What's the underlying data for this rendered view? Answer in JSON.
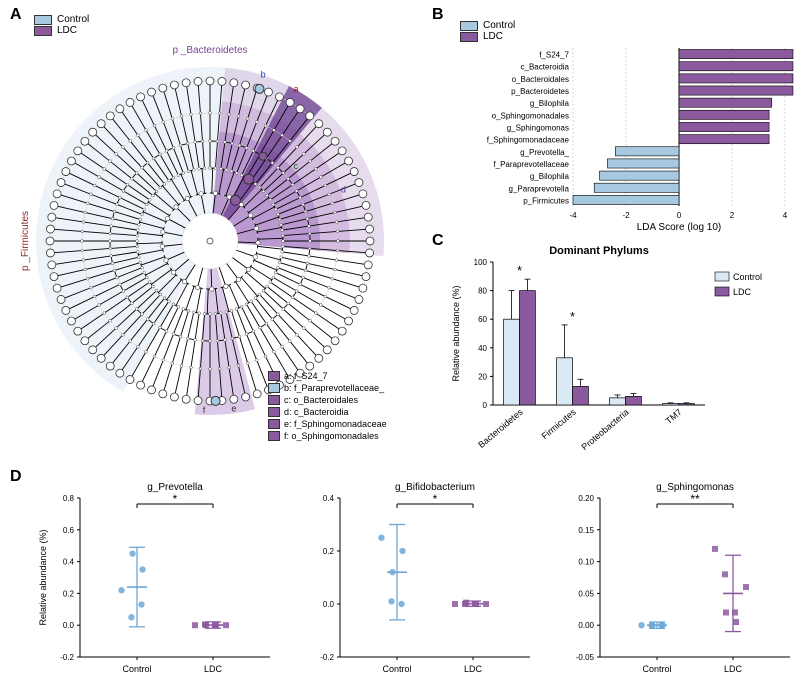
{
  "global": {
    "control_color": "#a6c8e0",
    "ldc_color": "#8b5a9e",
    "control_label": "Control",
    "ldc_label": "LDC",
    "bg": "#ffffff"
  },
  "panelA": {
    "label": "A",
    "title_top": "p _Bacteroidetes",
    "title_left": "p _Firmicutes",
    "wedge_bg_control": "#e3edf5",
    "wedge_bg_ldc_outer": "#d7c5e3",
    "wedge_bg_ldc_mid": "#c2a3d4",
    "wedge_bg_ldc_inner": "#a67bc2",
    "wedge_bg_ldc_small": "#bda0d6",
    "legend_items": [
      {
        "l": "a",
        "box": "#8b5a9e",
        "text": "a: f_S24_7"
      },
      {
        "l": "b",
        "box": "#a6c8e0",
        "text": "b: f_Paraprevotellaceae_"
      },
      {
        "l": "c",
        "box": "#8b5a9e",
        "text": "c: o_Bacteroidales"
      },
      {
        "l": "d",
        "box": "#8b5a9e",
        "text": "d: c_Bacteroidia"
      },
      {
        "l": "e",
        "box": "#8b5a9e",
        "text": "e: f_Sphingomonadaceae"
      },
      {
        "l": "f",
        "box": "#8b5a9e",
        "text": "f: o_Sphingomonadales"
      }
    ],
    "markers": {
      "a": "#a01020",
      "b": "#1040a0",
      "c": "#106010",
      "d": "#4b2e83"
    }
  },
  "panelB": {
    "label": "B",
    "xlabel": "LDA Score (log 10)",
    "xmin": -4,
    "xmax": 4,
    "xtick_step": 2,
    "bars": [
      {
        "name": "f_S24_7",
        "value": 4.3,
        "group": "ldc"
      },
      {
        "name": "c_Bacteroidia",
        "value": 4.3,
        "group": "ldc"
      },
      {
        "name": "o_Bacteroidales",
        "value": 4.3,
        "group": "ldc"
      },
      {
        "name": "p_Bacteroidetes",
        "value": 4.3,
        "group": "ldc"
      },
      {
        "name": "g_Bilophila",
        "value": 3.5,
        "group": "ldc"
      },
      {
        "name": "o_Sphingomonadales",
        "value": 3.4,
        "group": "ldc"
      },
      {
        "name": "g_Sphingomonas",
        "value": 3.4,
        "group": "ldc"
      },
      {
        "name": "f_Sphingomonadaceae",
        "value": 3.4,
        "group": "ldc"
      },
      {
        "name": "g_Prevotella_",
        "value": -2.4,
        "group": "control"
      },
      {
        "name": "f_Paraprevotellaceae",
        "value": -2.7,
        "group": "control"
      },
      {
        "name": "g_Bilophila",
        "value": -3.0,
        "group": "control"
      },
      {
        "name": "g_Paraprevotella",
        "value": -3.2,
        "group": "control"
      },
      {
        "name": "p_Firmicutes",
        "value": -4.0,
        "group": "control"
      }
    ]
  },
  "panelC": {
    "label": "C",
    "title": "Dominant Phylums",
    "ylabel": "Relative abundance (%)",
    "ymin": 0,
    "ymax": 100,
    "ytick_step": 20,
    "categories": [
      "Bacteroidetes",
      "Firmicutes",
      "Proteobacteria",
      "TM7"
    ],
    "series": [
      {
        "name": "Control",
        "color": "#dbe9f4",
        "values": [
          60,
          33,
          5,
          1
        ],
        "err": [
          20,
          23,
          2,
          0.5
        ]
      },
      {
        "name": "LDC",
        "color": "#8b5a9e",
        "values": [
          80,
          13,
          6,
          1
        ],
        "err": [
          8,
          5,
          2,
          0.5
        ]
      }
    ],
    "sig": [
      "*",
      "*",
      "",
      ""
    ]
  },
  "panelD": {
    "label": "D",
    "ylabel": "Relative abundance (%)",
    "charts": [
      {
        "title": "g_Prevotella",
        "sig": "*",
        "ymin": -0.2,
        "ymax": 0.8,
        "ystep": 0.2,
        "groups": [
          {
            "name": "Control",
            "color": "#6da8d6",
            "points": [
              0.22,
              0.45,
              0.05,
              0.35,
              0.13
            ],
            "mean": 0.24,
            "sd": 0.25
          },
          {
            "name": "LDC",
            "color": "#8b5a9e",
            "points": [
              0.0,
              0.0,
              0.005,
              0.0,
              0.0,
              0.0
            ],
            "mean": 0.001,
            "sd": 0.02
          }
        ]
      },
      {
        "title": "g_Bifidobacterium",
        "sig": "*",
        "ymin": -0.2,
        "ymax": 0.4,
        "ystep": 0.2,
        "groups": [
          {
            "name": "Control",
            "color": "#6da8d6",
            "points": [
              0.25,
              0.12,
              0.01,
              0.2,
              0.0
            ],
            "mean": 0.12,
            "sd": 0.18
          },
          {
            "name": "LDC",
            "color": "#8b5a9e",
            "points": [
              0.0,
              0.005,
              0.0,
              0.0,
              0.0,
              0.0
            ],
            "mean": 0.001,
            "sd": 0.01
          }
        ]
      },
      {
        "title": "g_Sphingomonas",
        "sig": "**",
        "ymin": -0.05,
        "ymax": 0.2,
        "ystep": 0.05,
        "groups": [
          {
            "name": "Control",
            "color": "#6da8d6",
            "points": [
              0.0,
              0.0,
              0.0,
              0.0,
              0.0
            ],
            "mean": 0.0,
            "sd": 0.005
          },
          {
            "name": "LDC",
            "color": "#8b5a9e",
            "points": [
              0.12,
              0.02,
              0.08,
              0.005,
              0.02,
              0.06
            ],
            "mean": 0.05,
            "sd": 0.06
          }
        ]
      }
    ]
  }
}
